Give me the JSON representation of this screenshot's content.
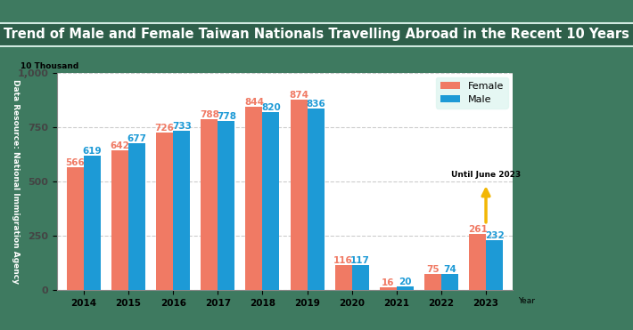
{
  "chart_data": {
    "type": "bar",
    "title": "Trend of Male and Female Taiwan Nationals Travelling Abroad in the Recent 10 Years",
    "y_label": "10 Thousand",
    "x_label": "Year",
    "source": "Data Resource: National Immigration Agency",
    "annotation": "Until June 2023",
    "categories": [
      "2014",
      "2015",
      "2016",
      "2017",
      "2018",
      "2019",
      "2020",
      "2021",
      "2022",
      "2023"
    ],
    "series": [
      {
        "name": "Female",
        "color": "#f07a64",
        "values": [
          566,
          642,
          726,
          788,
          844,
          874,
          116,
          16,
          75,
          261
        ]
      },
      {
        "name": "Male",
        "color": "#1d9ad6",
        "values": [
          619,
          677,
          733,
          778,
          820,
          836,
          117,
          20,
          74,
          232
        ]
      }
    ],
    "ylim": [
      0,
      1000
    ],
    "yticks": [
      0,
      250,
      500,
      750,
      {
        "value": 1000,
        "label": "1,000"
      }
    ],
    "grid": true,
    "legend": "upper right",
    "data_labels": true
  }
}
